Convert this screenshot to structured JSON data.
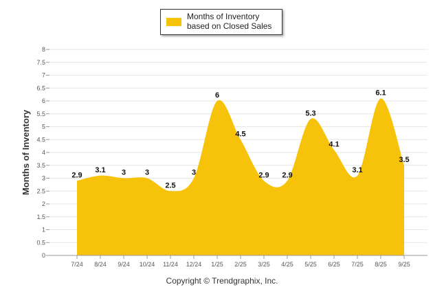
{
  "chart_data": {
    "type": "area",
    "categories": [
      "7/24",
      "8/24",
      "9/24",
      "10/24",
      "11/24",
      "12/24",
      "1/25",
      "2/25",
      "3/25",
      "4/25",
      "5/25",
      "6/25",
      "7/25",
      "8/25",
      "9/25"
    ],
    "series": [
      {
        "name": "Months of Inventory based on Closed Sales",
        "values": [
          2.9,
          3.1,
          3,
          3,
          2.5,
          3,
          6,
          4.5,
          2.9,
          2.9,
          5.3,
          4.1,
          3.1,
          6.1,
          3.5
        ]
      }
    ],
    "ylabel": "Months of Inventory",
    "ylim": [
      0,
      8
    ],
    "yticks": [
      "0",
      "0.5",
      "1",
      "1.5",
      "2",
      "2.5",
      "3",
      "3.5",
      "4",
      "4.5",
      "5",
      "5.5",
      "6",
      "6.5",
      "7",
      "7.5",
      "8"
    ],
    "grid": true,
    "legend_position": "top-center",
    "color": "#f7c20a"
  },
  "footer": {
    "copyright": "Copyright © Trendgraphix, Inc."
  }
}
